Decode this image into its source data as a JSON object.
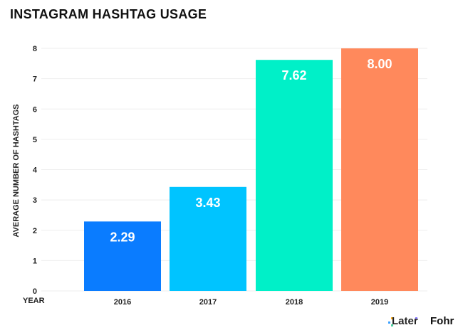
{
  "chart_data": {
    "type": "bar",
    "title": "INSTAGRAM HASHTAG USAGE",
    "xlabel": "YEAR",
    "ylabel": "AVERAGE NUMBER OF HASHTAGS",
    "categories": [
      "2016",
      "2017",
      "2018",
      "2019"
    ],
    "values": [
      2.29,
      3.43,
      7.62,
      8.0
    ],
    "data_labels": [
      "2.29",
      "3.43",
      "7.62",
      "8.00"
    ],
    "colors": [
      "#0a7cff",
      "#00c4ff",
      "#00f0c8",
      "#ff895c"
    ],
    "ylim": [
      0,
      8
    ],
    "yticks": [
      "0",
      "1",
      "2",
      "3",
      "4",
      "5",
      "6",
      "7",
      "8"
    ],
    "grid": true,
    "legend": "none"
  },
  "branding": {
    "logo1": "Later",
    "logo2": "Fohr"
  }
}
